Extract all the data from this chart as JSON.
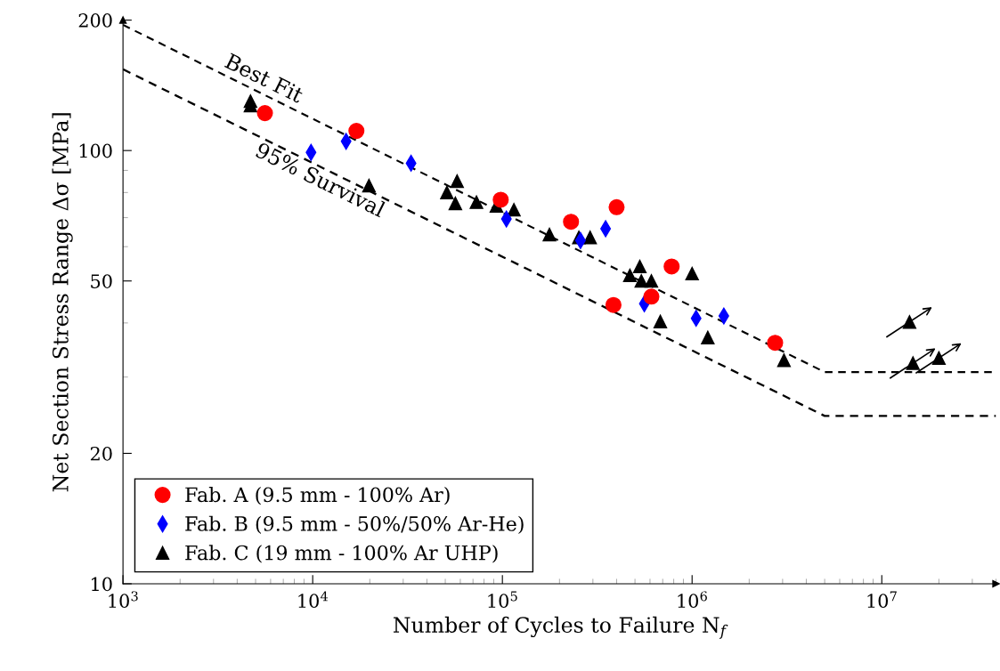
{
  "chart_data": {
    "type": "scatter",
    "xlabel": "Number of Cycles to Failure N$_{f}$",
    "ylabel": "Net Section Stress Range Δσ [MPa]",
    "log": "xy",
    "xlim": [
      1000,
      40000000
    ],
    "ylim": [
      10,
      200
    ],
    "xticks": [
      {
        "value": 1000,
        "label": "10$^{3}$"
      },
      {
        "value": 10000,
        "label": "10$^{4}$"
      },
      {
        "value": 100000,
        "label": "10$^{5}$"
      },
      {
        "value": 1000000,
        "label": "10$^{6}$"
      },
      {
        "value": 10000000,
        "label": "10$^{7}$"
      }
    ],
    "yticks": [
      10,
      20,
      50,
      100,
      200
    ],
    "grid": false,
    "legend": "bottom left",
    "series": [
      {
        "name": "Fab. A (9.5 mm - 100% Ar)",
        "marker": "circle",
        "color": "#ff0000",
        "x": [
          5600,
          17000,
          98000,
          230000,
          400000,
          780000,
          610000,
          385000,
          2740000
        ],
        "values": [
          122,
          111,
          77,
          68.5,
          74,
          54,
          46,
          44,
          36
        ]
      },
      {
        "name": "Fab. B (9.5 mm - 50%/50% Ar-He)",
        "marker": "diamond",
        "color": "#0000ff",
        "x": [
          9800,
          15000,
          33000,
          105000,
          258000,
          350000,
          560000,
          1050000,
          1470000
        ],
        "values": [
          99,
          105,
          93.5,
          69.5,
          62,
          66,
          44.3,
          41,
          41.5
        ]
      },
      {
        "name": "Fab. C (19 mm - 100% Ar UHP)",
        "marker": "triangle",
        "color": "#000000",
        "x": [
          4700,
          4700,
          19800,
          57700,
          51000,
          56500,
          73000,
          93000,
          115000,
          177000,
          253000,
          290000,
          530000,
          470000,
          540000,
          610000,
          1000000,
          680000,
          1210000,
          3050000
        ],
        "values": [
          130,
          127,
          83,
          85,
          80,
          75.5,
          76,
          74.5,
          73,
          64,
          63,
          63,
          54,
          51.5,
          50,
          50,
          52,
          40.3,
          37,
          32.8
        ]
      },
      {
        "marker": "triangle",
        "color": "#000000",
        "x": [
          14000000,
          14600000,
          20000000
        ],
        "values": [
          40.2,
          32.3,
          33.2
        ]
      },
      {
        "name": "Best Fit",
        "type": "line",
        "line_style": "dashed",
        "color": "#000000",
        "x": [
          1000,
          5000000,
          40000000
        ],
        "values": [
          195,
          30.8,
          30.8
        ]
      },
      {
        "name": "95% Survival",
        "type": "line",
        "line_style": "dashed",
        "color": "#000000",
        "x": [
          1000,
          5000000,
          40000000
        ],
        "values": [
          154,
          24.4,
          24.4
        ]
      }
    ]
  }
}
